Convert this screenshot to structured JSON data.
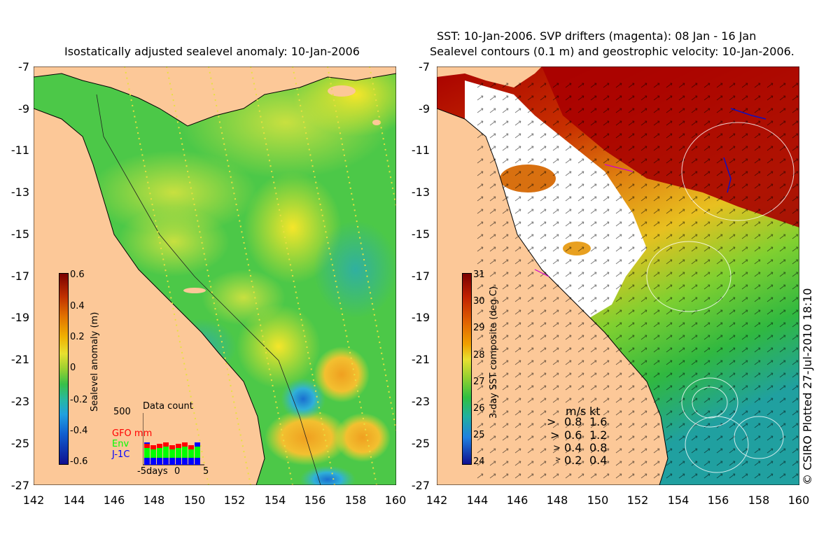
{
  "left_panel": {
    "title": "Isostatically adjusted sealevel anomaly: 10-Jan-2006",
    "y_ticks": [
      "-7",
      "-9",
      "-11",
      "-13",
      "-15",
      "-17",
      "-19",
      "-21",
      "-23",
      "-25",
      "-27"
    ],
    "x_ticks": [
      "142",
      "144",
      "146",
      "148",
      "150",
      "152",
      "154",
      "156",
      "158",
      "160"
    ],
    "colorbar": {
      "label": "Sealevel anomaly (m)",
      "ticks": [
        "0.6",
        "0.4",
        "0.2",
        "0",
        "-0.2",
        "-0.4",
        "-0.6"
      ]
    },
    "data_count": {
      "title": "Data count",
      "max": "500",
      "legend": [
        {
          "name": "GFO mm",
          "color": "#ff0000"
        },
        {
          "name": "Env",
          "color": "#00ff00"
        },
        {
          "name": "J-1C",
          "color": "#0000ff"
        }
      ],
      "x_label_left": "-5days",
      "x_label_mid": "0",
      "x_label_right": "5"
    }
  },
  "right_panel": {
    "title_line1": "SST: 10-Jan-2006. SVP drifters (magenta): 08 Jan - 16 Jan",
    "title_line2": "Sealevel contours (0.1 m) and geostrophic velocity: 10-Jan-2006.",
    "y_ticks": [
      "-7",
      "-9",
      "-11",
      "-13",
      "-15",
      "-17",
      "-19",
      "-21",
      "-23",
      "-25",
      "-27"
    ],
    "x_ticks": [
      "142",
      "144",
      "146",
      "148",
      "150",
      "152",
      "154",
      "156",
      "158",
      "160"
    ],
    "colorbar": {
      "label": "3-day SST composite (deg C)",
      "ticks": [
        "31",
        "30",
        "29",
        "28",
        "27",
        "26",
        "25",
        "24"
      ]
    },
    "velocity_legend": {
      "header_ms": "m/s",
      "header_kt": "kt",
      "rows": [
        {
          "ms": "0.8",
          "kt": "1.6"
        },
        {
          "ms": "0.6",
          "kt": "1.2"
        },
        {
          "ms": "0.4",
          "kt": "0.8"
        },
        {
          "ms": "0.2",
          "kt": "0.4"
        }
      ]
    },
    "credit": "© CSIRO Plotted 27-Jul-2010 18:10"
  }
}
